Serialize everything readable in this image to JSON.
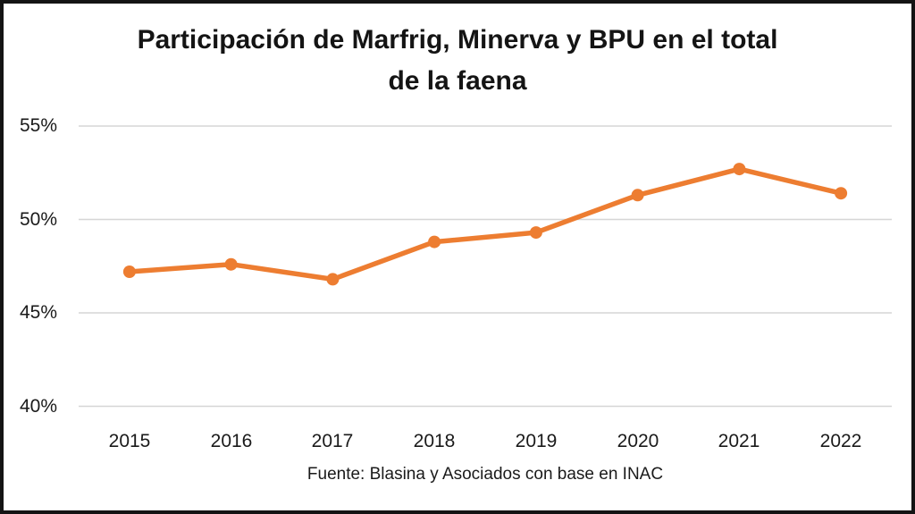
{
  "chart_data": {
    "type": "line",
    "title": "Participación de Marfrig, Minerva y BPU en el total de la faena",
    "title_lines": [
      "Participación de Marfrig, Minerva y BPU en el total",
      "de la faena"
    ],
    "categories": [
      "2015",
      "2016",
      "2017",
      "2018",
      "2019",
      "2020",
      "2021",
      "2022"
    ],
    "values": [
      47.2,
      47.6,
      46.8,
      48.8,
      49.3,
      51.3,
      52.7,
      51.4
    ],
    "xlabel": "",
    "ylabel": "",
    "ylim": [
      40,
      55
    ],
    "ytick_labels": [
      "55%",
      "50%",
      "45%",
      "40%"
    ],
    "ytick_values": [
      55,
      50,
      45,
      40
    ],
    "grid": "horizontal gridlines on",
    "legend": "none",
    "source": "Fuente: Blasina y Asociados con base en INAC"
  },
  "colors": {
    "line": "#ED7D31",
    "marker": "#ED7D31",
    "grid": "#D6D6D6",
    "text": "#1a1a1a",
    "border": "#141414",
    "background": "#ffffff"
  }
}
